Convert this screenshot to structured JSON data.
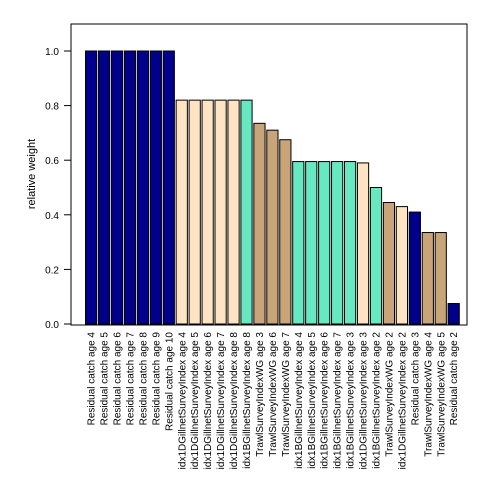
{
  "chart_data": {
    "type": "bar",
    "title": "",
    "xlabel": "",
    "ylabel": "relative weight",
    "ylim": [
      0,
      1.1
    ],
    "yticks": [
      0.0,
      0.2,
      0.4,
      0.6,
      0.8,
      1.0
    ],
    "ytick_labels": [
      "0.0",
      "0.2",
      "0.4",
      "0.6",
      "0.8",
      "1.0"
    ],
    "grid": false,
    "legend": "none",
    "colors": {
      "Residual catch": "#00008B",
      "idx1DGillnetSurveyIndex": "#FFE4C4",
      "idx1BGillnetSurveyIndex": "#66E8C0",
      "TrawlSurveyIndexWG": "#C8A478"
    },
    "categories": [
      "Residual catch age 4",
      "Residual catch age 5",
      "Residual catch age 6",
      "Residual catch age 7",
      "Residual catch age 8",
      "Residual catch age 9",
      "Residual catch age 10",
      "idx1DGillnetSurveyIndex age 4",
      "idx1DGillnetSurveyIndex age 5",
      "idx1DGillnetSurveyIndex age 6",
      "idx1DGillnetSurveyIndex age 7",
      "idx1DGillnetSurveyIndex age 8",
      "idx1BGillnetSurveyIndex age 8",
      "TrawlSurveyIndexWG age 3",
      "TrawlSurveyIndexWG age 6",
      "TrawlSurveyIndexWG age 7",
      "idx1BGillnetSurveyIndex age 4",
      "idx1BGillnetSurveyIndex age 5",
      "idx1BGillnetSurveyIndex age 6",
      "idx1BGillnetSurveyIndex age 7",
      "idx1BGillnetSurveyIndex age 3",
      "idx1DGillnetSurveyIndex age 3",
      "idx1BGillnetSurveyIndex age 2",
      "TrawlSurveyIndexWG age 2",
      "idx1DGillnetSurveyIndex age 2",
      "Residual catch age 3",
      "TrawlSurveyIndexWG age 4",
      "TrawlSurveyIndexWG age 5",
      "Residual catch age 2"
    ],
    "values": [
      1.0,
      1.0,
      1.0,
      1.0,
      1.0,
      1.0,
      1.0,
      0.82,
      0.82,
      0.82,
      0.82,
      0.82,
      0.82,
      0.735,
      0.71,
      0.675,
      0.595,
      0.595,
      0.595,
      0.595,
      0.595,
      0.59,
      0.5,
      0.445,
      0.43,
      0.41,
      0.335,
      0.335,
      0.075
    ],
    "bar_groups": [
      "Residual catch",
      "Residual catch",
      "Residual catch",
      "Residual catch",
      "Residual catch",
      "Residual catch",
      "Residual catch",
      "idx1DGillnetSurveyIndex",
      "idx1DGillnetSurveyIndex",
      "idx1DGillnetSurveyIndex",
      "idx1DGillnetSurveyIndex",
      "idx1DGillnetSurveyIndex",
      "idx1BGillnetSurveyIndex",
      "TrawlSurveyIndexWG",
      "TrawlSurveyIndexWG",
      "TrawlSurveyIndexWG",
      "idx1BGillnetSurveyIndex",
      "idx1BGillnetSurveyIndex",
      "idx1BGillnetSurveyIndex",
      "idx1BGillnetSurveyIndex",
      "idx1BGillnetSurveyIndex",
      "idx1DGillnetSurveyIndex",
      "idx1BGillnetSurveyIndex",
      "TrawlSurveyIndexWG",
      "idx1DGillnetSurveyIndex",
      "Residual catch",
      "TrawlSurveyIndexWG",
      "TrawlSurveyIndexWG",
      "Residual catch"
    ]
  }
}
